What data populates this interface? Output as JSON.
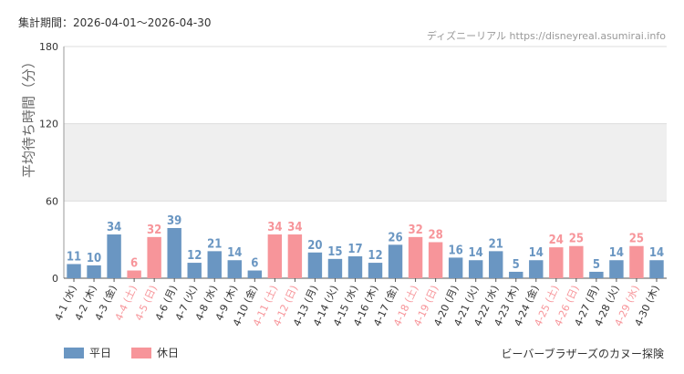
{
  "header": {
    "period": "集計期間：2026-04-01〜2026-04-30",
    "credit": "ディズニーリアル https://disneyreal.asumirai.info"
  },
  "footer": {
    "title": "ビーバーブラザーズのカヌー探険"
  },
  "colors": {
    "weekday": "#6a96c2",
    "holiday": "#f7959a",
    "band": "#efefef",
    "grid": "#dddddd"
  },
  "chart_data": {
    "type": "bar",
    "ylabel": "平均待ち時間（分）",
    "ylim": [
      0,
      180
    ],
    "yticks": [
      0,
      60,
      120,
      180
    ],
    "band": [
      60,
      120
    ],
    "categories": [
      "4-1 (水)",
      "4-2 (木)",
      "4-3 (金)",
      "4-4 (土)",
      "4-5 (日)",
      "4-6 (月)",
      "4-7 (火)",
      "4-8 (水)",
      "4-9 (木)",
      "4-10 (金)",
      "4-11 (土)",
      "4-12 (日)",
      "4-13 (月)",
      "4-14 (火)",
      "4-15 (水)",
      "4-16 (木)",
      "4-17 (金)",
      "4-18 (土)",
      "4-19 (日)",
      "4-20 (月)",
      "4-21 (火)",
      "4-22 (水)",
      "4-23 (木)",
      "4-24 (金)",
      "4-25 (土)",
      "4-26 (日)",
      "4-27 (月)",
      "4-28 (火)",
      "4-29 (水)",
      "4-30 (木)"
    ],
    "values": [
      11,
      10,
      34,
      6,
      32,
      39,
      12,
      21,
      14,
      6,
      34,
      34,
      20,
      15,
      17,
      12,
      26,
      32,
      28,
      16,
      14,
      21,
      5,
      14,
      24,
      25,
      5,
      14,
      25,
      14
    ],
    "day_type": [
      "平日",
      "平日",
      "平日",
      "休日",
      "休日",
      "平日",
      "平日",
      "平日",
      "平日",
      "平日",
      "休日",
      "休日",
      "平日",
      "平日",
      "平日",
      "平日",
      "平日",
      "休日",
      "休日",
      "平日",
      "平日",
      "平日",
      "平日",
      "平日",
      "休日",
      "休日",
      "平日",
      "平日",
      "休日",
      "平日"
    ],
    "legend": [
      {
        "label": "平日",
        "color": "#6a96c2"
      },
      {
        "label": "休日",
        "color": "#f7959a"
      }
    ]
  }
}
